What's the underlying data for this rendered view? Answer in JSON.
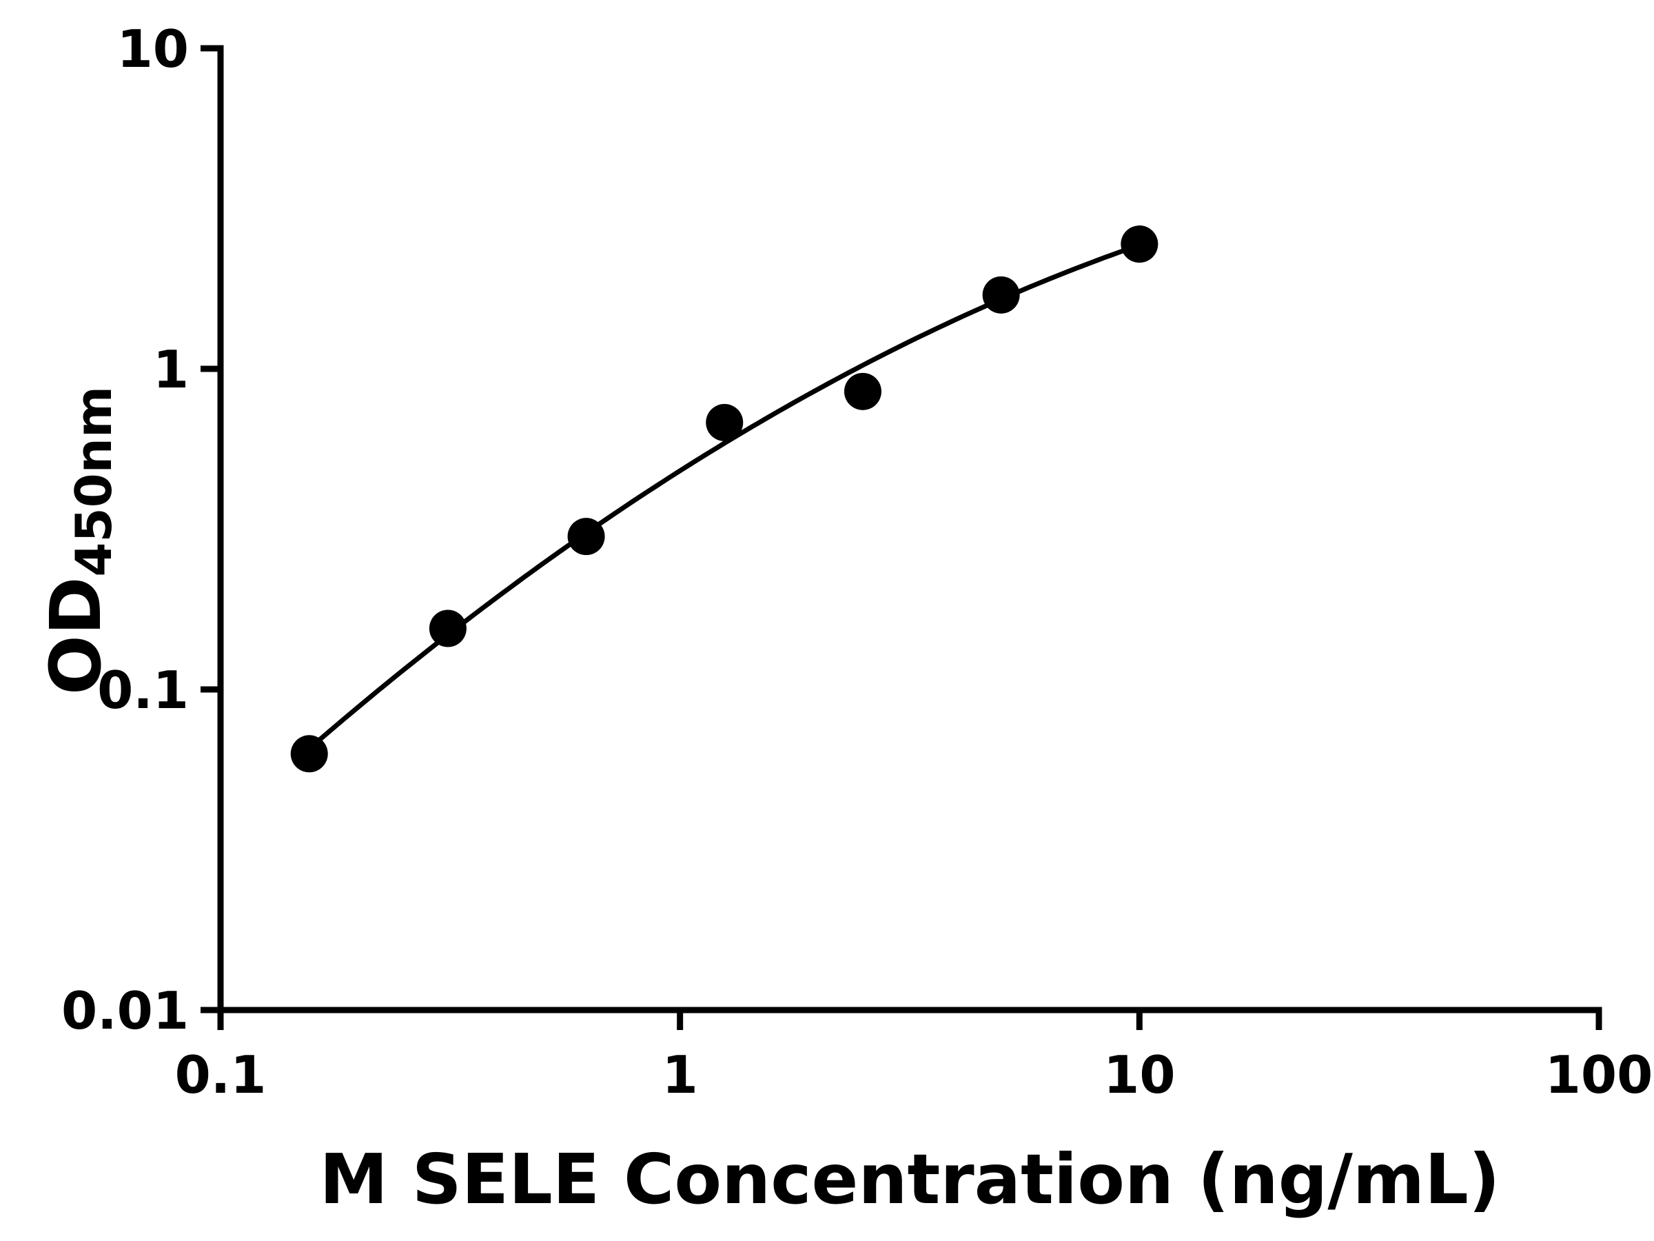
{
  "chart_data": {
    "type": "scatter",
    "title": "",
    "xlabel": "M SELE Concentration (ng/mL)",
    "ylabel_main": "OD",
    "ylabel_sub": "450nm",
    "x_scale": "log",
    "y_scale": "log",
    "xlim": [
      0.1,
      100
    ],
    "ylim": [
      0.01,
      10
    ],
    "x_ticks": [
      0.1,
      1,
      10,
      100
    ],
    "x_tick_labels": [
      "0.1",
      "1",
      "10",
      "100"
    ],
    "y_ticks": [
      10,
      1,
      0.1,
      0.01
    ],
    "y_tick_labels": [
      "10",
      "1",
      "0.1",
      "0.01"
    ],
    "grid": false,
    "legend": "none",
    "background": "#ffffff",
    "marker_color": "#000000",
    "line_color": "#000000",
    "x": [
      0.156,
      0.3125,
      0.625,
      1.25,
      2.5,
      5,
      10
    ],
    "y": [
      0.063,
      0.155,
      0.3,
      0.68,
      0.85,
      1.7,
      2.45
    ],
    "fit": {
      "type": "quadratic-loglog",
      "a": -0.318,
      "b": 0.9089,
      "c": -0.2047,
      "x_start": 0.156,
      "x_end": 10
    }
  }
}
